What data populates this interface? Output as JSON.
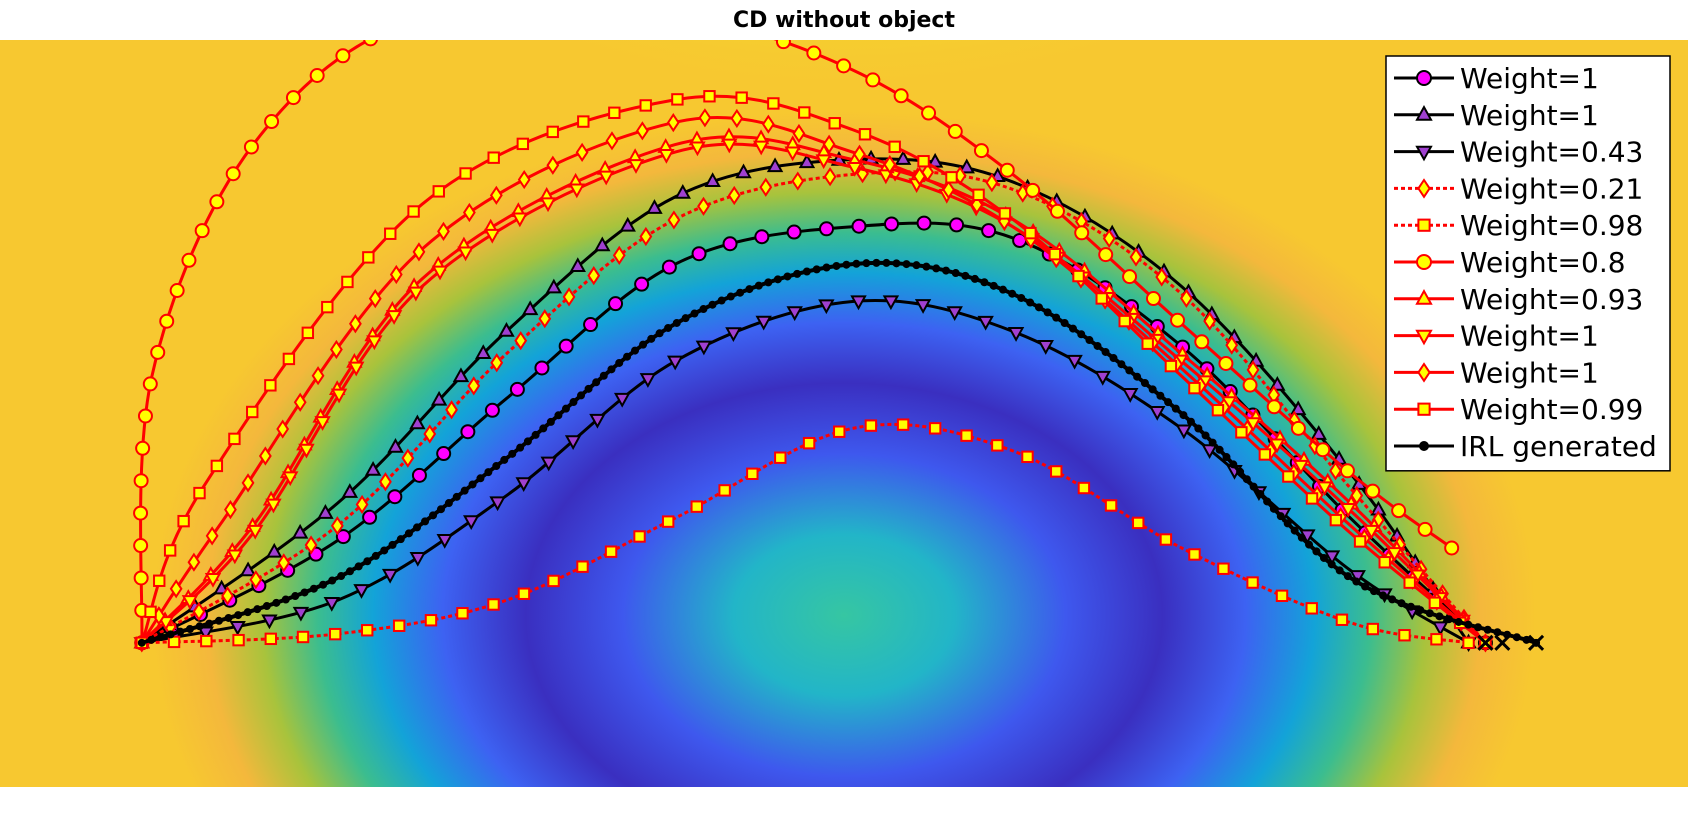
{
  "chart_data": {
    "type": "line",
    "title": "CD without object",
    "xlabel": "",
    "ylabel": "",
    "xlim": [
      0,
      10
    ],
    "ylim": [
      0,
      10
    ],
    "grid": false,
    "legend_position": "top-right",
    "background": {
      "type": "heatmap",
      "colormap": "parula",
      "description": "cost field with low values (blue) in a dome below the trajectories and high values (yellow) elsewhere"
    },
    "series": [
      {
        "name": "Weight=1",
        "color": "#000000",
        "marker": "circle",
        "marker_face": "#ff00ff",
        "line_style": "solid",
        "peak_y": 7.5,
        "end_x": 8.8,
        "x": [
          0.84,
          2.0,
          3.0,
          4.0,
          5.05,
          6.0,
          7.0,
          8.0,
          8.8
        ],
        "y": [
          1.93,
          3.3,
          5.2,
          7.0,
          7.5,
          7.35,
          5.9,
          3.6,
          1.93
        ]
      },
      {
        "name": "Weight=1",
        "color": "#000000",
        "marker": "triangle-up",
        "marker_face": "#a040d0",
        "line_style": "solid",
        "peak_y": 8.4,
        "end_x": 8.7,
        "x": [
          0.84,
          2.0,
          3.0,
          4.0,
          5.05,
          6.0,
          7.0,
          8.0,
          8.7
        ],
        "y": [
          1.93,
          3.8,
          6.1,
          7.9,
          8.4,
          8.1,
          6.7,
          4.2,
          1.93
        ]
      },
      {
        "name": "Weight=0.43",
        "color": "#000000",
        "marker": "triangle-down",
        "marker_face": "#a040d0",
        "line_style": "solid",
        "peak_y": 6.5,
        "end_x": 8.7,
        "x": [
          0.84,
          2.0,
          3.0,
          4.0,
          5.05,
          6.0,
          7.0,
          8.0,
          8.7
        ],
        "y": [
          1.93,
          2.5,
          3.9,
          5.7,
          6.5,
          6.1,
          4.8,
          2.9,
          1.93
        ]
      },
      {
        "name": "Weight=0.21",
        "color": "#ff0000",
        "marker": "diamond",
        "marker_face": "#ffff00",
        "line_style": "dotted",
        "peak_y": 8.2,
        "end_x": 8.8,
        "x": [
          0.84,
          2.0,
          3.0,
          4.0,
          5.05,
          6.0,
          7.0,
          8.0,
          8.8
        ],
        "y": [
          1.93,
          3.5,
          5.8,
          7.6,
          8.2,
          8.0,
          6.6,
          4.0,
          1.93
        ]
      },
      {
        "name": "Weight=0.98",
        "color": "#ff0000",
        "marker": "square",
        "marker_face": "#ffff00",
        "line_style": "dotted",
        "peak_y": 4.8,
        "end_x": 8.7,
        "x": [
          0.84,
          2.0,
          3.0,
          4.0,
          5.05,
          6.0,
          7.0,
          8.0,
          8.7
        ],
        "y": [
          1.93,
          2.05,
          2.5,
          3.6,
          4.8,
          4.5,
          3.2,
          2.2,
          1.93
        ]
      },
      {
        "name": "Weight=0.8",
        "color": "#ff0000",
        "marker": "circle",
        "marker_face": "#ffff00",
        "line_style": "solid",
        "peak_y": 10.5,
        "end_x": 8.6,
        "x": [
          0.84,
          0.9,
          1.5,
          2.5,
          4.0,
          5.05,
          6.0,
          7.0,
          8.0,
          8.6
        ],
        "y": [
          1.93,
          5.5,
          8.6,
          10.3,
          10.3,
          9.6,
          8.2,
          6.2,
          4.2,
          3.2
        ]
      },
      {
        "name": "Weight=0.93",
        "color": "#ff0000",
        "marker": "triangle-up",
        "marker_face": "#ffff00",
        "line_style": "solid",
        "peak_y": 8.6,
        "end_x": 8.8,
        "x": [
          0.84,
          1.5,
          2.5,
          4.0,
          5.05,
          6.0,
          7.0,
          8.0,
          8.8
        ],
        "y": [
          1.93,
          3.5,
          6.8,
          8.6,
          8.4,
          7.6,
          5.8,
          3.8,
          1.93
        ]
      },
      {
        "name": "Weight=1",
        "color": "#ff0000",
        "marker": "triangle-down",
        "marker_face": "#ffff00",
        "line_style": "solid",
        "peak_y": 8.6,
        "end_x": 8.8,
        "x": [
          0.84,
          1.5,
          2.5,
          4.0,
          5.05,
          6.0,
          7.0,
          8.0,
          8.8
        ],
        "y": [
          1.93,
          3.4,
          6.7,
          8.5,
          8.3,
          7.5,
          5.7,
          3.7,
          1.93
        ]
      },
      {
        "name": "Weight=1",
        "color": "#ff0000",
        "marker": "diamond",
        "marker_face": "#ffff00",
        "line_style": "solid",
        "peak_y": 8.9,
        "end_x": 8.8,
        "x": [
          0.84,
          1.3,
          2.5,
          4.0,
          5.05,
          6.0,
          7.0,
          8.0,
          8.8
        ],
        "y": [
          1.93,
          3.5,
          7.2,
          8.9,
          8.5,
          7.5,
          5.6,
          3.5,
          1.93
        ]
      },
      {
        "name": "Weight=0.99",
        "color": "#ff0000",
        "marker": "square",
        "marker_face": "#ffff00",
        "line_style": "solid",
        "peak_y": 9.2,
        "end_x": 8.8,
        "x": [
          0.84,
          1.2,
          2.5,
          4.0,
          5.05,
          6.0,
          7.0,
          8.0,
          8.8
        ],
        "y": [
          1.93,
          4.0,
          7.8,
          9.2,
          8.8,
          7.6,
          5.5,
          3.4,
          1.93
        ]
      },
      {
        "name": "IRL generated",
        "color": "#000000",
        "marker": "dot",
        "marker_face": "#000000",
        "line_style": "solid",
        "peak_y": 7.0,
        "end_x": 9.1,
        "x": [
          0.84,
          2.0,
          3.0,
          4.0,
          5.05,
          6.0,
          7.0,
          8.0,
          9.1
        ],
        "y": [
          1.93,
          2.8,
          4.4,
          6.2,
          7.0,
          6.6,
          5.0,
          2.8,
          1.93
        ]
      }
    ]
  }
}
